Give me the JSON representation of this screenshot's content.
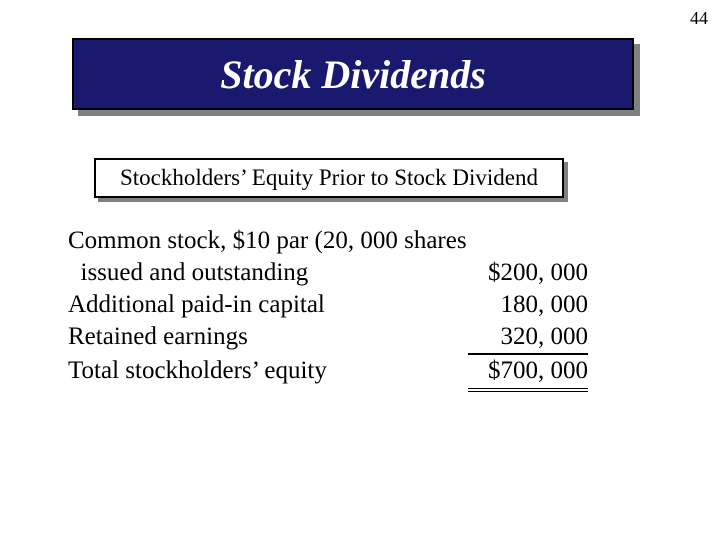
{
  "page_number": "44",
  "title": {
    "text": "Stock Dividends",
    "bg_color": "#191970",
    "text_color": "#ffffff",
    "border_color": "#000000",
    "shadow_color": "#808080",
    "fontsize": 40
  },
  "subtitle": {
    "text": "Stockholders’ Equity Prior to Stock Dividend",
    "bg_color": "#ffffff",
    "text_color": "#000000",
    "border_color": "#000000",
    "shadow_color": "#808080",
    "fontsize": 23
  },
  "equity": {
    "fontsize": 25,
    "text_color": "#000000",
    "row0": {
      "label": "Common stock, $10 par (20, 000 shares",
      "value": ""
    },
    "row1": {
      "label": "  issued and outstanding",
      "value": "$200, 000"
    },
    "row2": {
      "label": "Additional paid-in capital",
      "value": "180, 000"
    },
    "row3": {
      "label": "Retained earnings",
      "value": "320, 000"
    },
    "row4": {
      "label": "Total stockholders’ equity",
      "value": "$700, 000"
    }
  }
}
